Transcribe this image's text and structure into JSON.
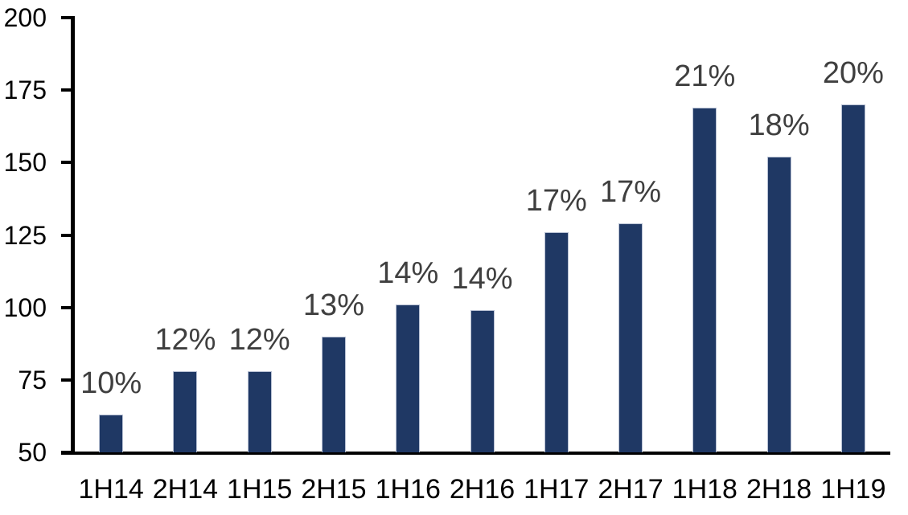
{
  "chart_data": {
    "type": "bar",
    "categories": [
      "1H14",
      "2H14",
      "1H15",
      "2H15",
      "1H16",
      "2H16",
      "1H17",
      "2H17",
      "1H18",
      "2H18",
      "1H19"
    ],
    "values": [
      63,
      78,
      78,
      90,
      101,
      99,
      126,
      129,
      169,
      152,
      170
    ],
    "value_labels": [
      "10%",
      "12%",
      "12%",
      "13%",
      "14%",
      "14%",
      "17%",
      "17%",
      "21%",
      "18%",
      "20%"
    ],
    "yticks": [
      50,
      75,
      100,
      125,
      150,
      175,
      200
    ],
    "ylim": [
      50,
      200
    ],
    "xlabel": "",
    "ylabel": "",
    "grid": false,
    "legend": false,
    "bar_color": "#1F3864",
    "bar_border_color": "#B7C0D3",
    "value_label_color": "#3F3F3F",
    "axis_color": "#000000",
    "background": "#FFFFFF"
  }
}
